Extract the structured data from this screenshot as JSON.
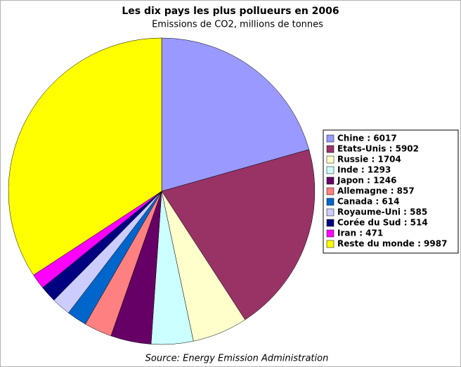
{
  "chart_data": {
    "type": "pie",
    "title": "Les dix pays les plus pollueurs en 2006",
    "subtitle": "Emissions de CO2, millions de tonnes",
    "source": "Source: Energy Emission Administration",
    "categories": [
      "Chine : 6017",
      "Etats-Unis : 5902",
      "Russie : 1704",
      "Inde : 1293",
      "Japon : 1246",
      "Allemagne : 857",
      "Canada : 614",
      "Royaume-Uni : 585",
      "Corée du Sud : 514",
      "Iran : 471",
      "Reste du monde : 9987"
    ],
    "values": [
      6017,
      5902,
      1704,
      1293,
      1246,
      857,
      614,
      585,
      514,
      471,
      9987
    ],
    "colors": [
      "#9999ff",
      "#993366",
      "#ffffcc",
      "#ccffff",
      "#660066",
      "#ff8080",
      "#0066cc",
      "#ccccff",
      "#000080",
      "#ff00ff",
      "#ffff00"
    ],
    "legend": "right"
  }
}
